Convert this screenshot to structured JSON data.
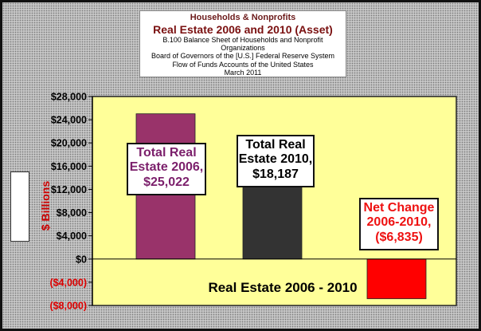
{
  "header": {
    "line1": "Households & Nonprofits",
    "line2": "Real Estate 2006 and 2010 (Asset)",
    "line3": "B.100 Balance Sheet of Households and Nonprofit Organizations",
    "line4": "Board of Governors of the [U.S.] Federal Reserve System",
    "line5": "Flow of Funds Accounts of the United States",
    "line6": "March 2011"
  },
  "chart_data": {
    "type": "bar",
    "title": "Real Estate 2006 and 2010 (Asset)",
    "xlabel": "Real Estate 2006 - 2010",
    "ylabel": "$ Billions",
    "ylim": [
      -8000,
      28000
    ],
    "yticks": [
      28000,
      24000,
      20000,
      16000,
      12000,
      8000,
      4000,
      0,
      -4000,
      -8000
    ],
    "ytick_labels": [
      "$28,000",
      "$24,000",
      "$20,000",
      "$16,000",
      "$12,000",
      "$8,000",
      "$4,000",
      "$0",
      "($4,000)",
      "($8,000)"
    ],
    "categories": [
      "Total Real Estate 2006",
      "Total Real Estate 2010",
      "Net Change 2006-2010"
    ],
    "values": [
      25022,
      18187,
      -6835
    ],
    "colors": [
      "#99336a",
      "#333333",
      "#ff0000"
    ],
    "plot_background": "#ffff99",
    "grid": false,
    "data_labels": [
      {
        "lines": [
          "Total Real",
          "Estate 2006,",
          "$25,022"
        ],
        "color": "#7b1f6b"
      },
      {
        "lines": [
          "Total Real",
          "Estate 2010,",
          "$18,187"
        ],
        "color": "#000000"
      },
      {
        "lines": [
          "Net Change",
          "2006-2010,",
          "($6,835)"
        ],
        "color": "#ee1111"
      }
    ]
  }
}
